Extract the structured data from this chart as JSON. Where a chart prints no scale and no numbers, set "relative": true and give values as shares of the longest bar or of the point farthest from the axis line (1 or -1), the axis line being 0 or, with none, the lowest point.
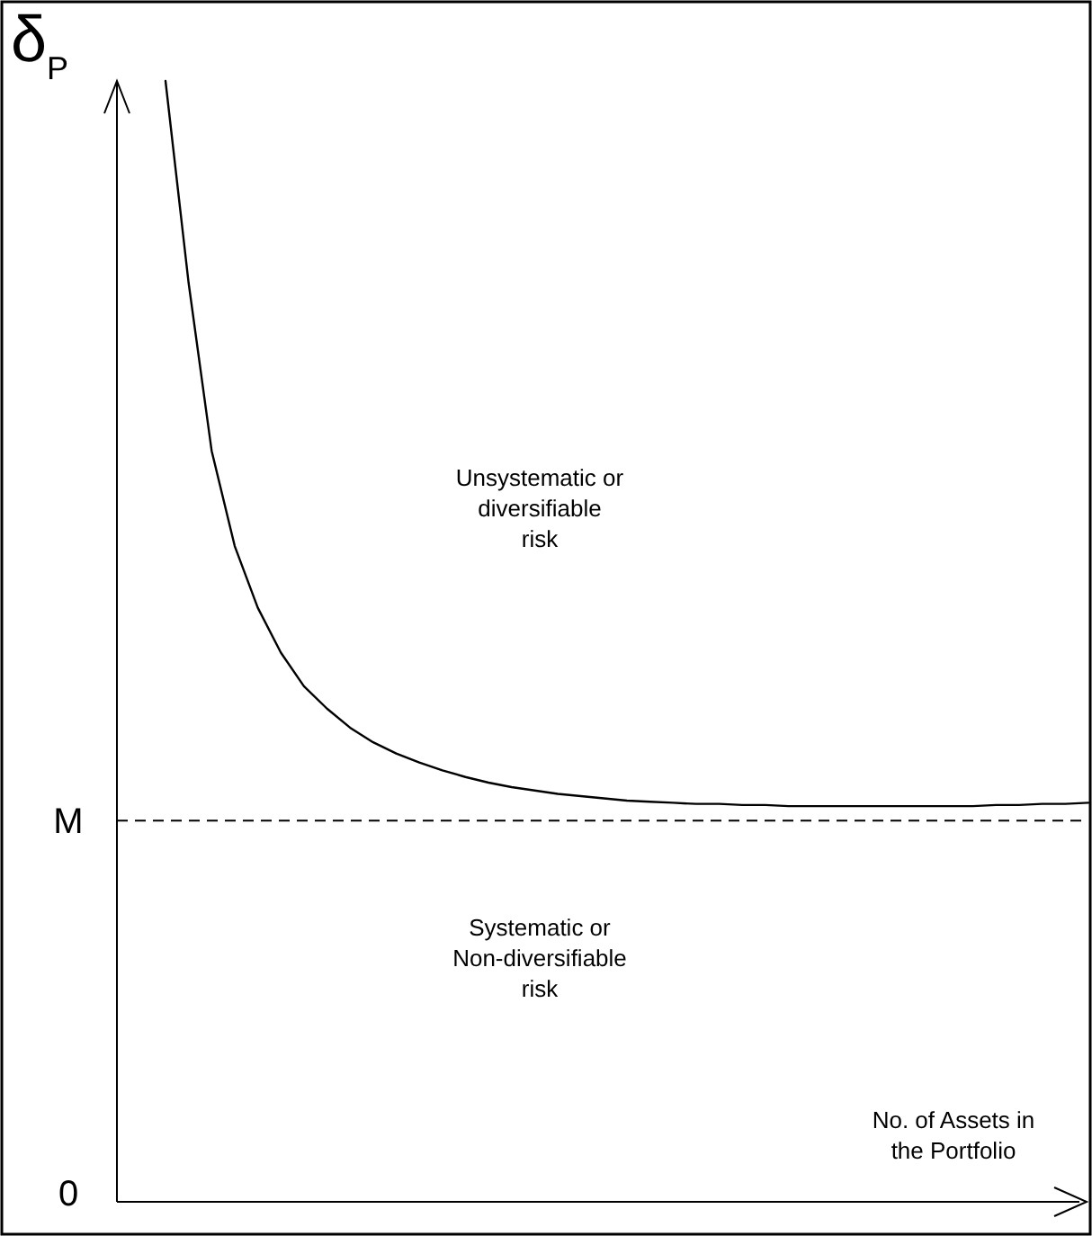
{
  "chart_data": {
    "type": "line",
    "relative": true,
    "ylabel": "δ$_{P}$",
    "xlabel": "No. of Assets in the Portfolio",
    "categories": [
      null,
      null,
      null,
      null,
      null,
      null,
      null,
      null,
      null,
      null,
      null,
      null,
      null,
      null,
      null,
      null,
      null,
      null,
      null,
      null,
      null,
      null,
      null,
      null,
      null,
      null,
      null,
      null,
      null,
      null,
      null,
      null,
      null,
      null,
      null,
      null,
      null,
      null,
      null,
      null,
      null
    ],
    "series": [
      {
        "color": "#000000",
        "values": [
          1,
          0.82,
          0.67,
          0.585,
          0.53,
          0.49,
          0.46,
          0.44,
          0.423,
          0.41,
          0.4,
          0.392,
          0.385,
          0.379,
          0.374,
          0.37,
          0.367,
          0.364,
          0.362,
          0.36,
          0.358,
          0.357,
          0.356,
          0.355,
          0.355,
          0.354,
          0.354,
          0.353,
          0.353,
          0.353,
          0.353,
          0.353,
          0.353,
          0.353,
          0.353,
          0.353,
          0.354,
          0.354,
          0.355,
          0.355,
          0.356
        ]
      }
    ],
    "ref_lines": [
      {
        "axis": "y",
        "value": 0.34,
        "label": "M",
        "color": "#000000",
        "line_style": "dashed"
      }
    ],
    "annotations": [
      "0",
      "Unsystematic or diversifiable risk",
      "Systematic or Non-diversifiable risk"
    ],
    "marker": "none",
    "line_style": "solid"
  }
}
